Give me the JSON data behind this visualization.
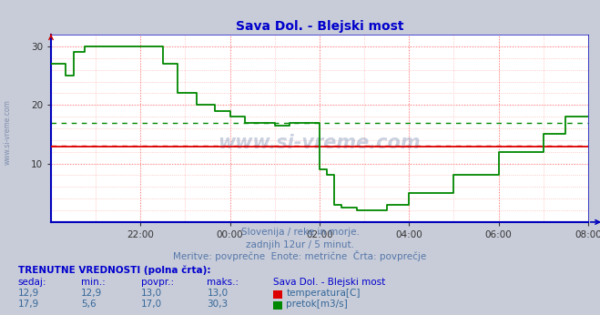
{
  "title": "Sava Dol. - Blejski most",
  "title_color": "#0000cc",
  "bg_color": "#c8ccd8",
  "plot_bg_color": "#ffffff",
  "grid_color_main": "#ff9999",
  "grid_color_minor": "#ffcccc",
  "temp_color": "#dd0000",
  "flow_color": "#008800",
  "avg_temp": 13.0,
  "avg_flow": 17.0,
  "ylim": [
    0,
    32
  ],
  "yticks": [
    10,
    20,
    30
  ],
  "xlim": [
    0,
    12
  ],
  "xtick_positions": [
    2,
    4,
    6,
    8,
    10,
    12
  ],
  "xtick_labels": [
    "22:00",
    "00:00",
    "02:00",
    "04:00",
    "06:00",
    "08:00"
  ],
  "watermark": "www.si-vreme.com",
  "left_watermark": "www.si-vreme.com",
  "sub_text1": "Slovenija / reke in morje.",
  "sub_text2": "zadnjih 12ur / 5 minut.",
  "sub_text3": "Meritve: povprečne  Enote: metrične  Črta: povprečje",
  "table_header": "TRENUTNE VREDNOSTI (polna črta):",
  "col_headers": [
    "sedaj:",
    "min.:",
    "povpr.:",
    "maks.:",
    "Sava Dol. - Blejski most"
  ],
  "temp_row": [
    "12,9",
    "12,9",
    "13,0",
    "13,0",
    "temperatura[C]"
  ],
  "flow_row": [
    "17,9",
    "5,6",
    "17,0",
    "30,3",
    "pretok[m3/s]"
  ],
  "border_color": "#0000aa",
  "spine_color": "#0000bb",
  "text_color": "#336699",
  "header_color": "#0000cc"
}
